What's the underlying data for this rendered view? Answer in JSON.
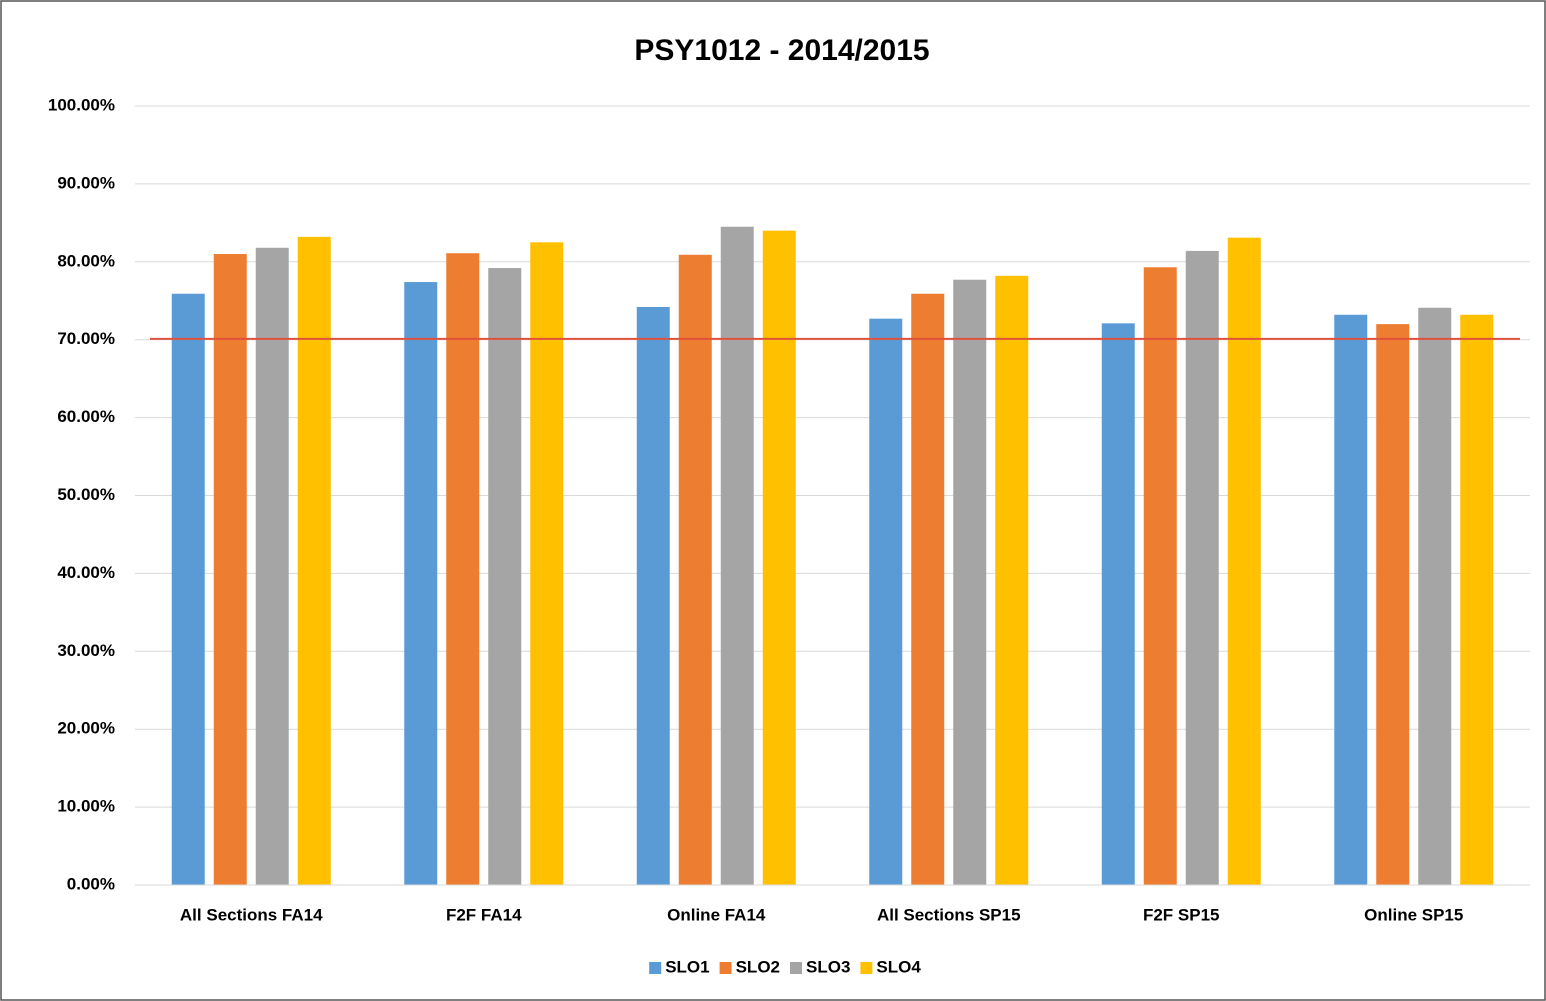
{
  "chart_data": {
    "type": "bar",
    "title": "PSY1012 - 2014/2015",
    "categories": [
      "All Sections FA14",
      "F2F FA14",
      "Online FA14",
      "All Sections SP15",
      "F2F SP15",
      "Online SP15"
    ],
    "series": [
      {
        "name": "SLO1",
        "color": "#5b9bd5",
        "values": [
          75.9,
          77.4,
          74.2,
          72.7,
          72.1,
          73.2
        ]
      },
      {
        "name": "SLO2",
        "color": "#ed7d31",
        "values": [
          81.0,
          81.1,
          80.9,
          75.9,
          79.3,
          72.0
        ]
      },
      {
        "name": "SLO3",
        "color": "#a5a5a5",
        "values": [
          81.8,
          79.2,
          84.5,
          77.7,
          81.4,
          74.1
        ]
      },
      {
        "name": "SLO4",
        "color": "#ffc000",
        "values": [
          83.2,
          82.5,
          84.0,
          78.2,
          83.1,
          73.2
        ]
      }
    ],
    "reference_line": {
      "value": 70.1,
      "color": "#e0513c"
    },
    "ylim": [
      0,
      100
    ],
    "yticks": [
      {
        "value": 0,
        "label": "0.00%"
      },
      {
        "value": 10,
        "label": "10.00%"
      },
      {
        "value": 20,
        "label": "20.00%"
      },
      {
        "value": 30,
        "label": "30.00%"
      },
      {
        "value": 40,
        "label": "40.00%"
      },
      {
        "value": 50,
        "label": "50.00%"
      },
      {
        "value": 60,
        "label": "60.00%"
      },
      {
        "value": 70,
        "label": "70.00%"
      },
      {
        "value": 80,
        "label": "80.00%"
      },
      {
        "value": 90,
        "label": "90.00%"
      },
      {
        "value": 100,
        "label": "100.00%"
      }
    ],
    "grid": true,
    "legend": "bottom"
  }
}
